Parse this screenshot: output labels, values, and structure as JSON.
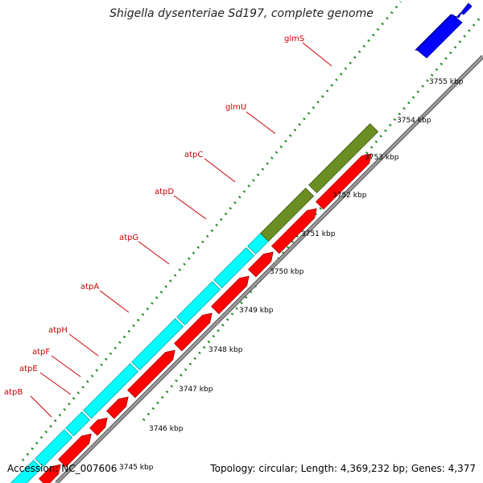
{
  "title": "Shigella dysenteriae Sd197, complete genome",
  "footer": {
    "accession": "Accession: NC_007606",
    "topology": "Topology: circular; Length: 4,369,232 bp; Genes: 4,377"
  },
  "colors": {
    "background": "#ffffff",
    "backbone": "#9a9a9a",
    "gene_cds": "#ff0000",
    "gene_atp": "#00ffff",
    "gene_glm": "#6b8e23",
    "gene_other": "#0000ff",
    "tick": "#228b22",
    "gene_label": "#cc0000",
    "scale_label": "#000000"
  },
  "map": {
    "scale_labels": [
      "3745 kbp",
      "3746 kbp",
      "3747 kbp",
      "3748 kbp",
      "3749 kbp",
      "3750 kbp",
      "3751 kbp",
      "3752 kbp",
      "3753 kbp",
      "3754 kbp",
      "3755 kbp"
    ],
    "genes": [
      {
        "name": "atpB",
        "color_key": "gene_atp"
      },
      {
        "name": "atpE",
        "color_key": "gene_atp"
      },
      {
        "name": "atpF",
        "color_key": "gene_atp"
      },
      {
        "name": "atpH",
        "color_key": "gene_atp"
      },
      {
        "name": "atpA",
        "color_key": "gene_atp"
      },
      {
        "name": "atpG",
        "color_key": "gene_atp"
      },
      {
        "name": "atpD",
        "color_key": "gene_atp"
      },
      {
        "name": "atpC",
        "color_key": "gene_atp"
      },
      {
        "name": "glmU",
        "color_key": "gene_glm"
      },
      {
        "name": "glmS",
        "color_key": "gene_glm"
      }
    ]
  }
}
